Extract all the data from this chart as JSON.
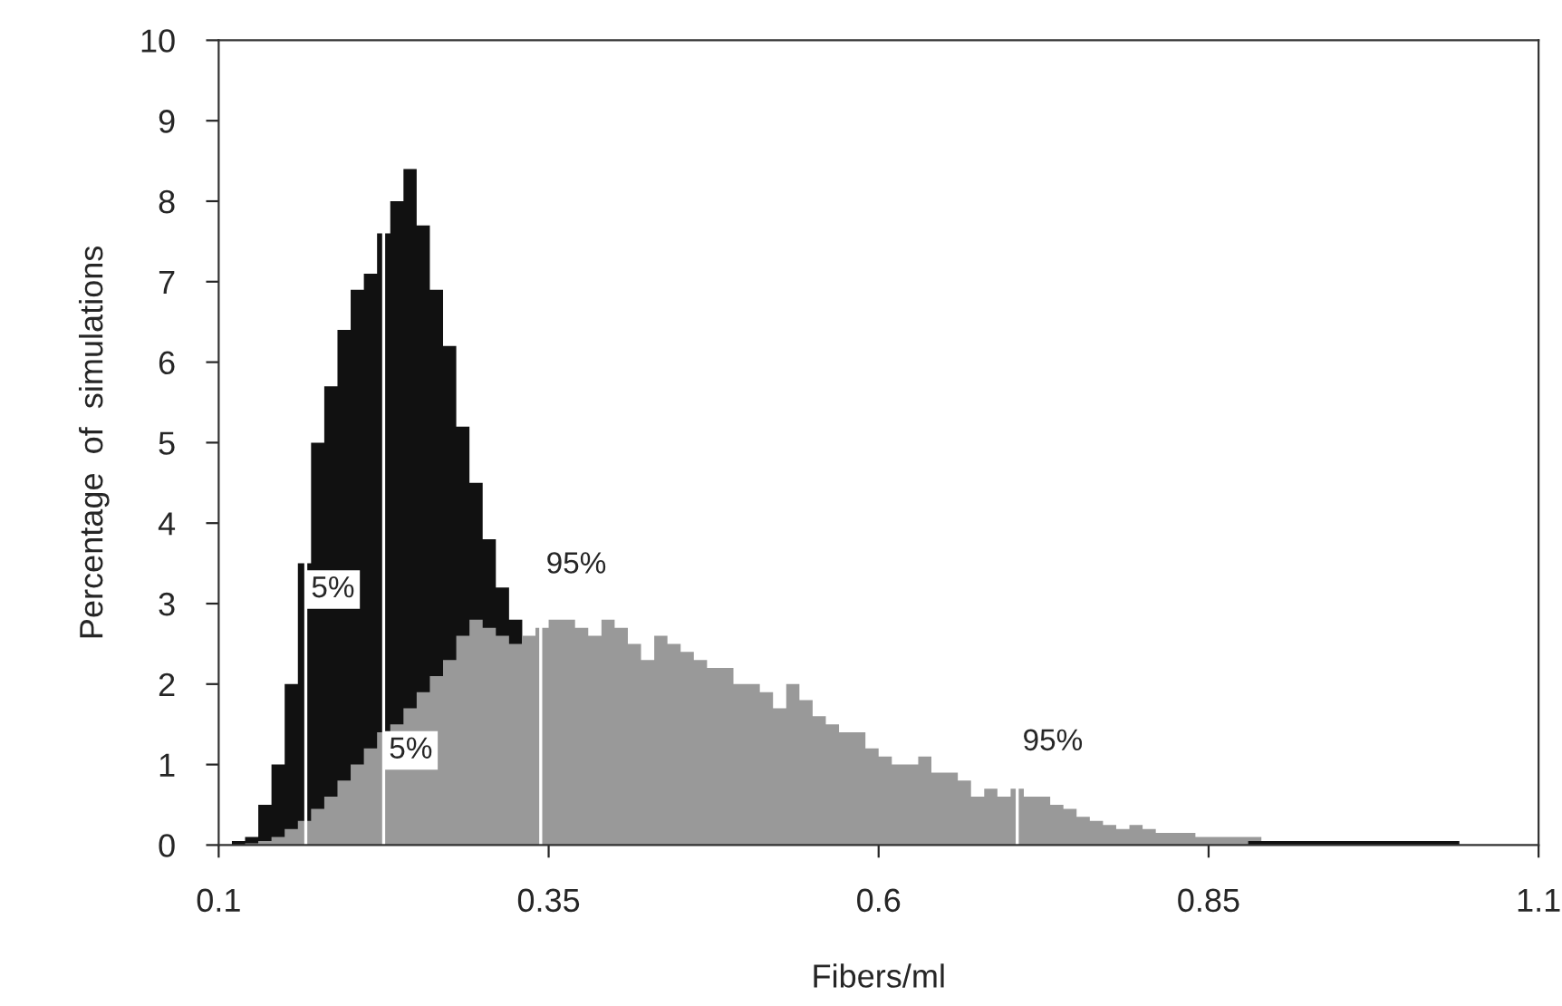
{
  "chart_data": {
    "type": "histogram",
    "xlabel": "Fibers/ml",
    "ylabel": "Percentage  of  simulations",
    "bins": [
      0.11,
      0.12,
      0.13,
      0.14,
      0.15,
      0.16,
      0.17,
      0.18,
      0.19,
      0.2,
      0.21,
      0.22,
      0.23,
      0.24,
      0.25,
      0.26,
      0.27,
      0.28,
      0.29,
      0.3,
      0.31,
      0.32,
      0.33,
      0.34,
      0.35,
      0.36,
      0.37,
      0.38,
      0.39,
      0.4,
      0.41,
      0.42,
      0.43,
      0.44,
      0.45,
      0.46,
      0.47,
      0.48,
      0.49,
      0.5,
      0.51,
      0.52,
      0.53,
      0.54,
      0.55,
      0.56,
      0.57,
      0.58,
      0.59,
      0.6,
      0.61,
      0.62,
      0.63,
      0.64,
      0.65,
      0.66,
      0.67,
      0.68,
      0.69,
      0.7,
      0.71,
      0.72,
      0.73,
      0.74,
      0.75,
      0.76,
      0.77,
      0.78,
      0.79,
      0.8,
      0.81,
      0.82,
      0.83,
      0.84,
      0.85,
      0.86,
      0.87,
      0.88,
      0.89,
      0.9,
      0.91,
      0.92,
      0.93,
      0.94,
      0.95,
      0.96,
      0.97,
      0.98,
      0.99,
      1.0,
      1.01,
      1.02,
      1.03,
      1.04,
      1.05,
      1.06
    ],
    "series": [
      {
        "color": "#111111",
        "bins": [
          0.11,
          0.12,
          0.13,
          0.14,
          0.15,
          0.16,
          0.17,
          0.18,
          0.19,
          0.2,
          0.21,
          0.22,
          0.23,
          0.24,
          0.25,
          0.26,
          0.27,
          0.28,
          0.29,
          0.3,
          0.31,
          0.32,
          0.33
        ],
        "values": [
          0.05,
          0.1,
          0.5,
          1.0,
          2.0,
          3.5,
          5.0,
          5.7,
          6.4,
          6.9,
          7.1,
          7.6,
          8.0,
          8.4,
          7.7,
          6.9,
          6.2,
          5.2,
          4.5,
          3.8,
          3.2,
          2.8
        ]
      },
      {
        "color": "#999999",
        "values": [
          0,
          0.02,
          0.05,
          0.1,
          0.2,
          0.3,
          0.45,
          0.6,
          0.8,
          1.0,
          1.2,
          1.4,
          1.5,
          1.7,
          1.9,
          2.1,
          2.3,
          2.6,
          2.8,
          2.7,
          2.6,
          2.5,
          2.6,
          2.7,
          2.8,
          2.8,
          2.7,
          2.6,
          2.8,
          2.7,
          2.5,
          2.3,
          2.6,
          2.5,
          2.4,
          2.3,
          2.2,
          2.2,
          2.0,
          2.0,
          1.9,
          1.7,
          2.0,
          1.8,
          1.6,
          1.5,
          1.4,
          1.4,
          1.2,
          1.1,
          1.0,
          1.0,
          1.1,
          0.9,
          0.9,
          0.8,
          0.6,
          0.7,
          0.6,
          0.7,
          0.6,
          0.6,
          0.5,
          0.45,
          0.35,
          0.3,
          0.25,
          0.2,
          0.25,
          0.2,
          0.15,
          0.15,
          0.15,
          0.1,
          0.1,
          0.1,
          0.1,
          0.1,
          0.03,
          0.03,
          0.03,
          0.03,
          0.03,
          0.03,
          0.03,
          0.03,
          0.02,
          0.02,
          0,
          0,
          0,
          0,
          0,
          0,
          0
        ]
      },
      {
        "color": "#111111",
        "bins": [
          0.88,
          0.89,
          0.9,
          0.91,
          0.92,
          0.93,
          0.94,
          0.95,
          0.96,
          0.97,
          0.98,
          0.99,
          1.0,
          1.01,
          1.02,
          1.03,
          1.04
        ],
        "values": [
          0.05,
          0.05,
          0.05,
          0.05,
          0.05,
          0.05,
          0.05,
          0.05,
          0.05,
          0.05,
          0.05,
          0.05,
          0.05,
          0.05,
          0.05,
          0.05
        ]
      }
    ],
    "xlim": [
      0.1,
      1.1
    ],
    "xticks": [
      0.1,
      0.35,
      0.6,
      0.85,
      1.1
    ],
    "ylim": [
      0,
      10
    ],
    "yticks": [
      0,
      1,
      2,
      3,
      4,
      5,
      6,
      7,
      8,
      9,
      10
    ],
    "ref_lines": [
      {
        "axis": "x",
        "value": 0.166,
        "color": "#ffffff"
      },
      {
        "axis": "x",
        "value": 0.344,
        "color": "#ffffff"
      },
      {
        "axis": "x",
        "value": 0.225,
        "color": "#ffffff"
      },
      {
        "axis": "x",
        "value": 0.705,
        "color": "#ffffff"
      }
    ],
    "annotations": [
      {
        "text": "5%",
        "x": 0.166,
        "y": 3.0
      },
      {
        "text": "95%",
        "x": 0.344,
        "y": 3.3
      },
      {
        "text": "5%",
        "x": 0.225,
        "y": 1.0
      },
      {
        "text": "95%",
        "x": 0.705,
        "y": 1.1
      }
    ]
  }
}
